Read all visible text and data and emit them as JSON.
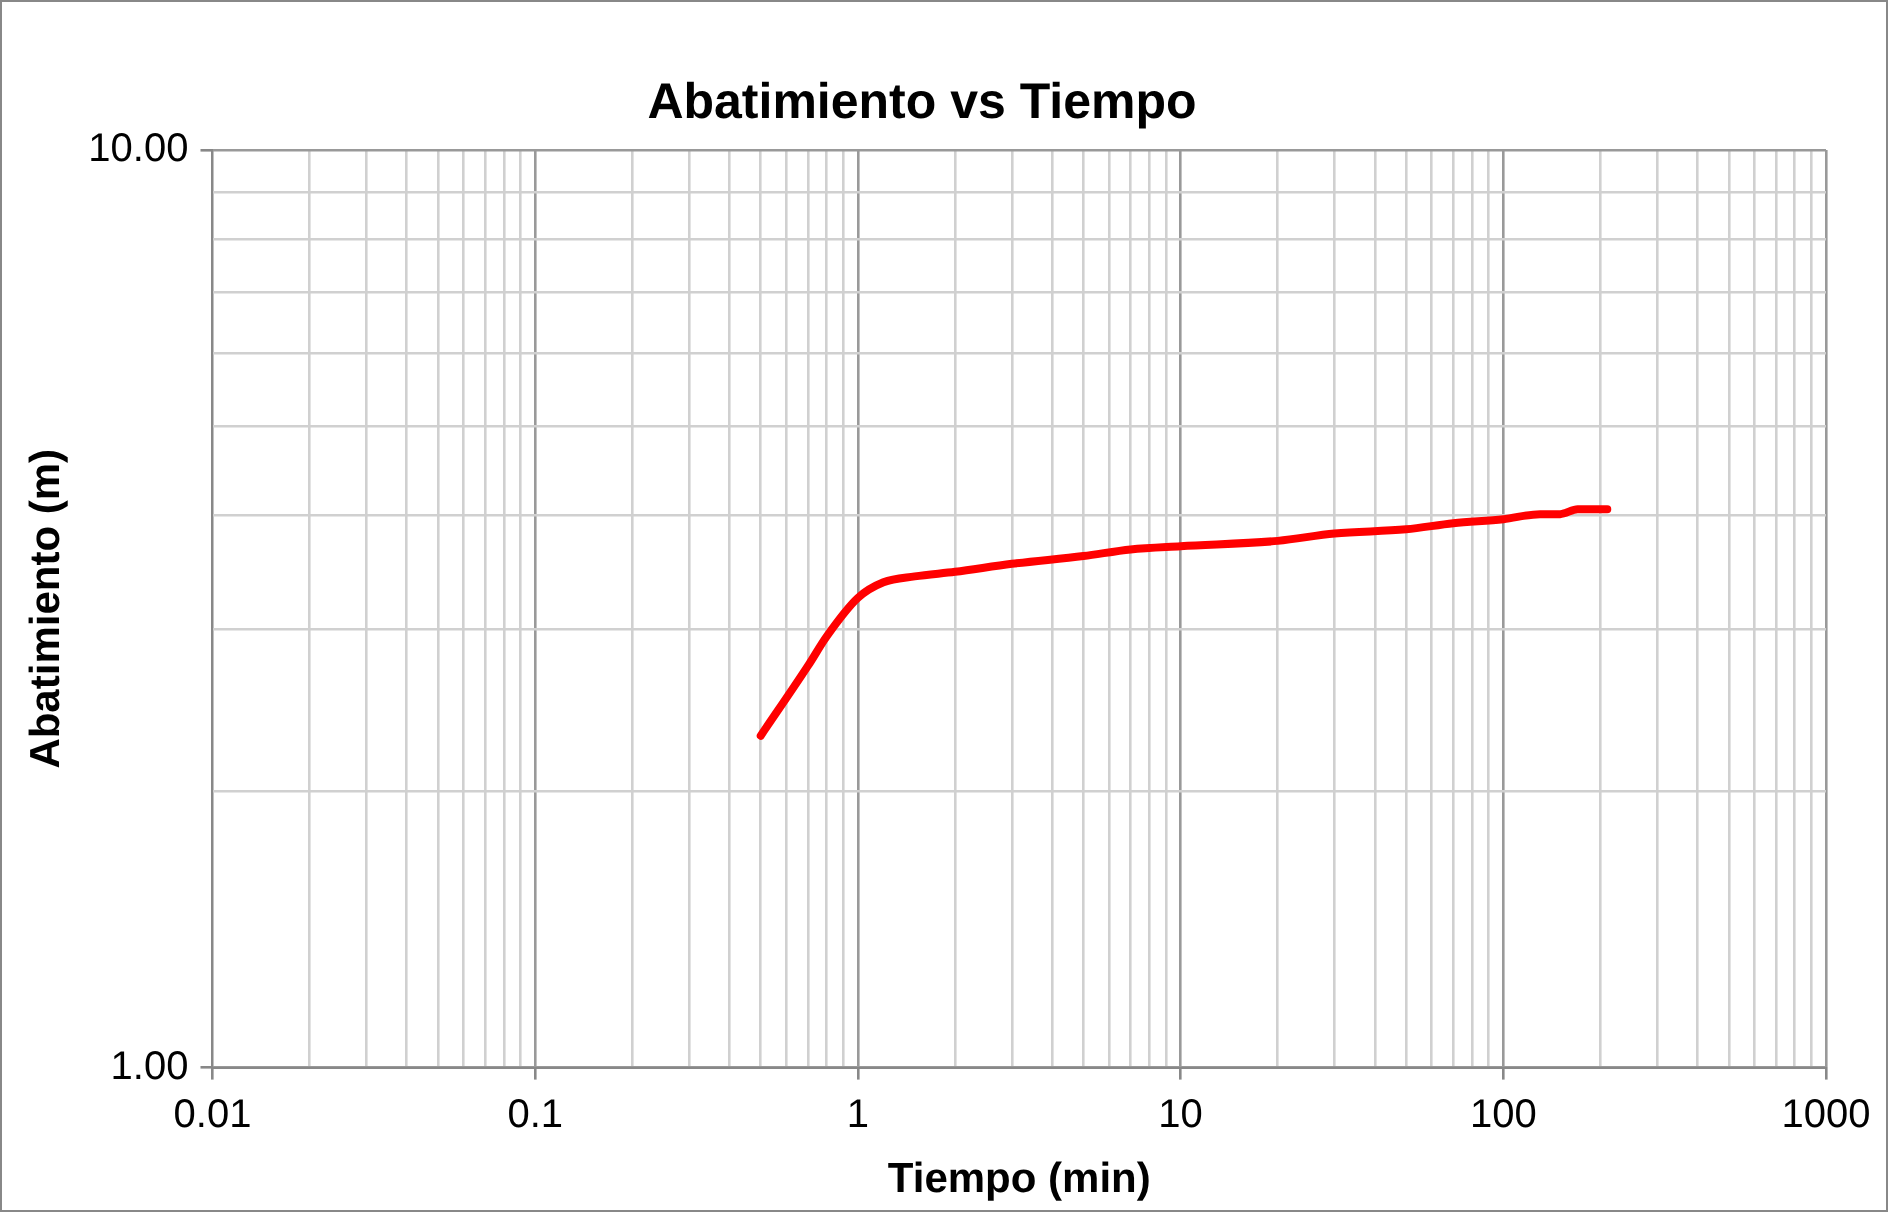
{
  "chart_data": {
    "type": "line",
    "title": "Abatimiento vs Tiempo",
    "xlabel": "Tiempo (min)",
    "ylabel": "Abatimiento (m)",
    "log": "xy",
    "grid": true,
    "legend": false,
    "marker": "none",
    "line_style": "solid",
    "xlim": [
      0.01,
      1000
    ],
    "ylim": [
      1,
      10
    ],
    "xticks": [
      0.01,
      {
        "value": 0.02,
        "label": null
      },
      {
        "value": 0.03,
        "label": null
      },
      {
        "value": 0.04,
        "label": null
      },
      {
        "value": 0.05,
        "label": null
      },
      {
        "value": 0.06,
        "label": null
      },
      {
        "value": 0.07,
        "label": null
      },
      {
        "value": 0.08,
        "label": null
      },
      {
        "value": 0.09,
        "label": null
      },
      0.1,
      {
        "value": 0.2,
        "label": null
      },
      {
        "value": 0.3,
        "label": null
      },
      {
        "value": 0.4,
        "label": null
      },
      {
        "value": 0.5,
        "label": null
      },
      {
        "value": 0.6,
        "label": null
      },
      {
        "value": 0.7,
        "label": null
      },
      {
        "value": 0.8,
        "label": null
      },
      {
        "value": 0.9,
        "label": null
      },
      1,
      {
        "value": 2,
        "label": null
      },
      {
        "value": 3,
        "label": null
      },
      {
        "value": 4,
        "label": null
      },
      {
        "value": 5,
        "label": null
      },
      {
        "value": 6,
        "label": null
      },
      {
        "value": 7,
        "label": null
      },
      {
        "value": 8,
        "label": null
      },
      {
        "value": 9,
        "label": null
      },
      10,
      {
        "value": 20,
        "label": null
      },
      {
        "value": 30,
        "label": null
      },
      {
        "value": 40,
        "label": null
      },
      {
        "value": 50,
        "label": null
      },
      {
        "value": 60,
        "label": null
      },
      {
        "value": 70,
        "label": null
      },
      {
        "value": 80,
        "label": null
      },
      {
        "value": 90,
        "label": null
      },
      100,
      {
        "value": 200,
        "label": null
      },
      {
        "value": 300,
        "label": null
      },
      {
        "value": 400,
        "label": null
      },
      {
        "value": 500,
        "label": null
      },
      {
        "value": 600,
        "label": null
      },
      {
        "value": 700,
        "label": null
      },
      {
        "value": 800,
        "label": null
      },
      {
        "value": 900,
        "label": null
      },
      1000
    ],
    "yticks": [
      {
        "value": 1,
        "label": "1.00"
      },
      {
        "value": 2,
        "label": null
      },
      {
        "value": 3,
        "label": null
      },
      {
        "value": 4,
        "label": null
      },
      {
        "value": 5,
        "label": null
      },
      {
        "value": 6,
        "label": null
      },
      {
        "value": 7,
        "label": null
      },
      {
        "value": 8,
        "label": null
      },
      {
        "value": 9,
        "label": null
      },
      {
        "value": 10,
        "label": "10.00"
      }
    ],
    "x": [
      0.5,
      0.7,
      0.8,
      1,
      1.2,
      1.5,
      2,
      3,
      5,
      7,
      10,
      20,
      30,
      50,
      70,
      100,
      130,
      150,
      170,
      210
    ],
    "series": [
      {
        "color": "#ff0000",
        "values": [
          2.3,
          2.74,
          2.95,
          3.25,
          3.38,
          3.43,
          3.47,
          3.54,
          3.61,
          3.67,
          3.7,
          3.75,
          3.82,
          3.86,
          3.92,
          3.96,
          4.01,
          4.01,
          4.06,
          4.06
        ]
      }
    ]
  }
}
